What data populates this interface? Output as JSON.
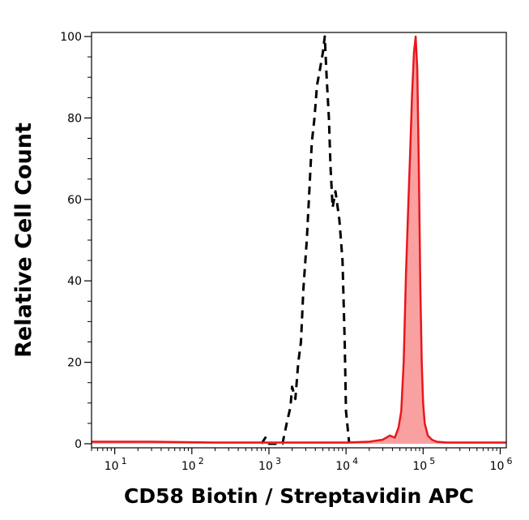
{
  "chart_data": {
    "type": "area",
    "xlabel": "CD58 Biotin / Streptavidin APC",
    "ylabel": "Relative Cell Count",
    "xscale": "log",
    "xlim": [
      5,
      1200000
    ],
    "ylim": [
      -1,
      101
    ],
    "x_ticks": [
      {
        "base": "10",
        "exp": "1",
        "value": 10
      },
      {
        "base": "10",
        "exp": "2",
        "value": 100
      },
      {
        "base": "10",
        "exp": "3",
        "value": 1000
      },
      {
        "base": "10",
        "exp": "4",
        "value": 10000
      },
      {
        "base": "10",
        "exp": "5",
        "value": 100000
      },
      {
        "base": "10",
        "exp": "6",
        "value": 1000000
      }
    ],
    "y_ticks": [
      0,
      20,
      40,
      60,
      80,
      100
    ],
    "grid": false,
    "legend": "none",
    "series": [
      {
        "style": "dashed",
        "color": "#000000",
        "fill": "none",
        "points": [
          [
            800,
            0
          ],
          [
            900,
            1.5
          ],
          [
            1000,
            0
          ],
          [
            1500,
            0
          ],
          [
            1700,
            5
          ],
          [
            1900,
            9
          ],
          [
            2000,
            14
          ],
          [
            2200,
            11
          ],
          [
            2400,
            20
          ],
          [
            2600,
            25
          ],
          [
            2800,
            38
          ],
          [
            3100,
            50
          ],
          [
            3300,
            60
          ],
          [
            3600,
            74
          ],
          [
            3900,
            80
          ],
          [
            4200,
            88
          ],
          [
            4600,
            92
          ],
          [
            5000,
            96
          ],
          [
            5300,
            100
          ],
          [
            5600,
            90
          ],
          [
            6000,
            80
          ],
          [
            6300,
            68
          ],
          [
            6700,
            58
          ],
          [
            7300,
            62
          ],
          [
            8200,
            55
          ],
          [
            9000,
            45
          ],
          [
            9600,
            25
          ],
          [
            10000,
            8
          ],
          [
            11000,
            0
          ]
        ]
      },
      {
        "style": "solid",
        "color": "#e8171b",
        "fill": "#f9a0a1",
        "points": [
          [
            5,
            0.5
          ],
          [
            30,
            0.5
          ],
          [
            200,
            0.3
          ],
          [
            1000,
            0.3
          ],
          [
            10000,
            0.3
          ],
          [
            20000,
            0.5
          ],
          [
            30000,
            1
          ],
          [
            37000,
            2
          ],
          [
            43000,
            1.5
          ],
          [
            48000,
            4
          ],
          [
            52000,
            8
          ],
          [
            56000,
            20
          ],
          [
            60000,
            42
          ],
          [
            64000,
            58
          ],
          [
            68000,
            72
          ],
          [
            72000,
            86
          ],
          [
            76000,
            96
          ],
          [
            80000,
            100
          ],
          [
            84000,
            92
          ],
          [
            88000,
            68
          ],
          [
            92000,
            38
          ],
          [
            96000,
            20
          ],
          [
            100000,
            10
          ],
          [
            105000,
            5
          ],
          [
            115000,
            2
          ],
          [
            130000,
            1
          ],
          [
            150000,
            0.5
          ],
          [
            200000,
            0.3
          ],
          [
            1000000,
            0.3
          ],
          [
            1200000,
            0.3
          ]
        ]
      }
    ]
  }
}
